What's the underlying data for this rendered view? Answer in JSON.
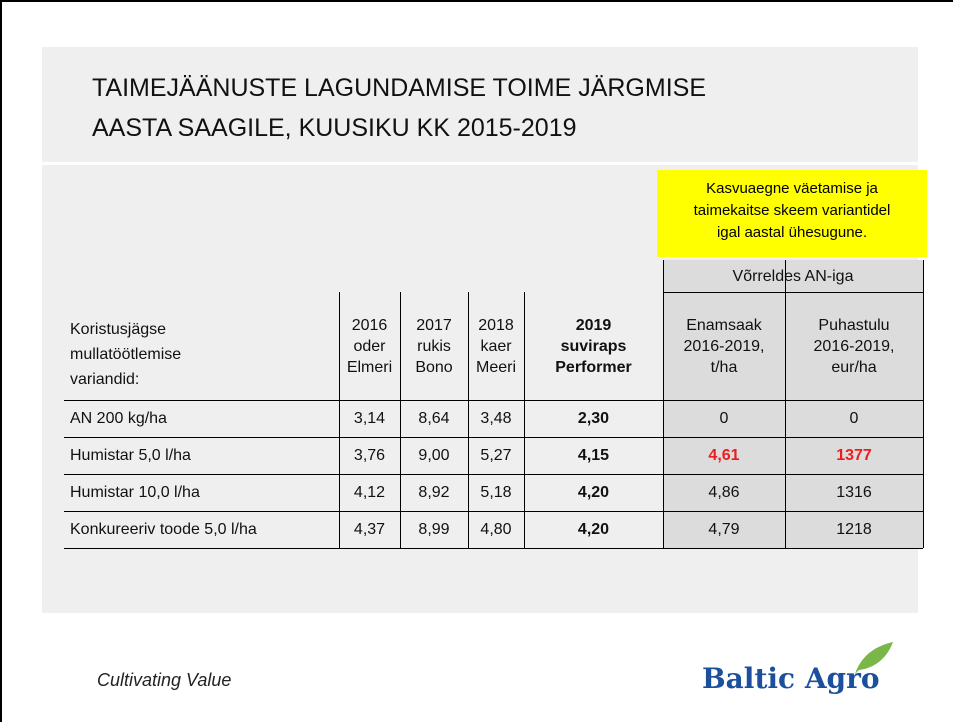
{
  "title": [
    "TAIMEJÄÄNUSTE LAGUNDAMISE TOIME JÄRGMISE",
    "AASTA SAAGILE, KUUSIKU KK 2015-2019"
  ],
  "note": [
    "Kasvuaegne väetamise ja",
    "taimekaitse skeem variantidel",
    "igal aastal ühesugune."
  ],
  "table": {
    "group_header": "Võrreldes AN-iga",
    "columns": [
      [
        "Koristusjägse",
        "mullatöötlemise",
        "variandid:"
      ],
      [
        "2016",
        "oder",
        "Elmeri"
      ],
      [
        "2017",
        "rukis",
        "Bono"
      ],
      [
        "2018",
        "kaer",
        "Meeri"
      ],
      [
        "2019",
        "suviraps",
        "Performer"
      ],
      [
        "Enamsaak",
        "2016-2019,",
        "t/ha"
      ],
      [
        "Puhastulu",
        "2016-2019,",
        "eur/ha"
      ]
    ],
    "rows": [
      [
        "AN 200 kg/ha",
        "3,14",
        "8,64",
        "3,48",
        "2,30",
        "0",
        "0"
      ],
      [
        "Humistar 5,0 l/ha",
        "3,76",
        "9,00",
        "5,27",
        "4,15",
        "4,61",
        "1377"
      ],
      [
        "Humistar 10,0 l/ha",
        "4,12",
        "8,92",
        "5,18",
        "4,20",
        "4,86",
        "1316"
      ],
      [
        "Konkureeriv toode 5,0 l/ha",
        "4,37",
        "8,99",
        "4,80",
        "4,20",
        "4,79",
        "1218"
      ]
    ]
  },
  "footer": {
    "tagline": "Cultivating Value",
    "logo": "Baltic Agro"
  }
}
